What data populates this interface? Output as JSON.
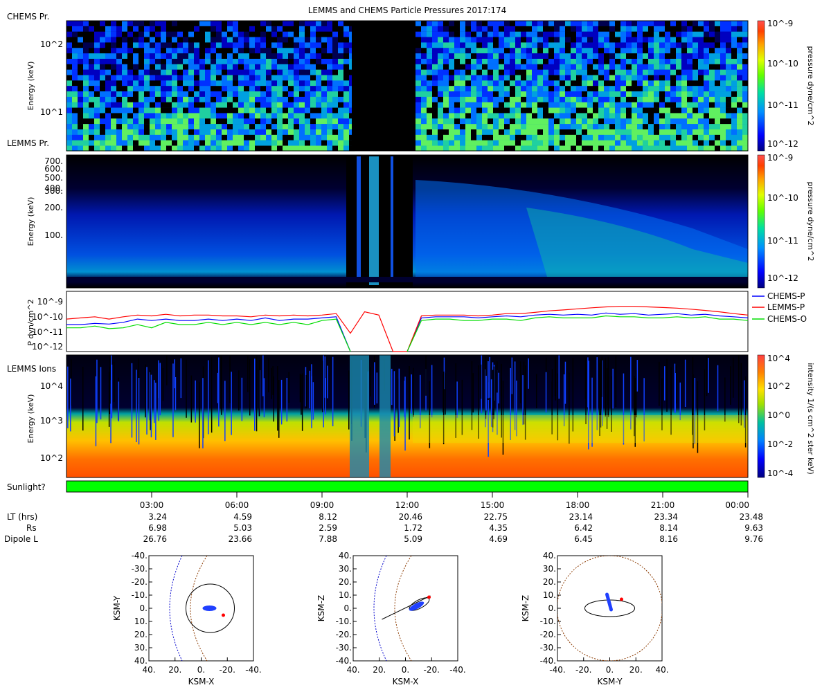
{
  "title": "LEMMS and CHEMS Particle Pressures  2017:174",
  "panels": [
    {
      "id": "chems_pressure",
      "label": "CHEMS Pr.",
      "ylabel": "Energy (keV)",
      "yticks": [
        "10^2",
        "10^1"
      ],
      "colorbar": {
        "label": "pressure dyne/cm^2",
        "ticks": [
          "10^-9",
          "10^-10",
          "10^-11",
          "10^-12"
        ]
      }
    },
    {
      "id": "lemms_pressure",
      "label": "LEMMS Pr.",
      "ylabel": "Energy (keV)",
      "yticks": [
        "700.",
        "600.",
        "500.",
        "400.",
        "300.",
        "200.",
        "100."
      ],
      "colorbar": {
        "label": "pressure dyne/cm^2",
        "ticks": [
          "10^-9",
          "10^-10",
          "10^-11",
          "10^-12"
        ]
      }
    },
    {
      "id": "pressure_lines",
      "label": "",
      "ylabel": "P dyn/cm^2",
      "yticks": [
        "10^-9",
        "10^-10",
        "10^-11",
        "10^-12"
      ],
      "legend": [
        {
          "name": "CHEMS-P",
          "color": "#0000ff"
        },
        {
          "name": "LEMMS-P",
          "color": "#ff0000"
        },
        {
          "name": "CHEMS-O",
          "color": "#00dd00"
        }
      ]
    },
    {
      "id": "lemms_ions",
      "label": "LEMMS Ions",
      "ylabel": "Energy (keV)",
      "yticks": [
        "10^4",
        "10^3",
        "10^2"
      ],
      "colorbar": {
        "label": "intensity 1/(s cm^2 ster keV)",
        "ticks": [
          "10^4",
          "10^2",
          "10^0",
          "10^-2",
          "10^-4"
        ]
      }
    },
    {
      "id": "sunlight",
      "label": "Sunlight?",
      "color": "#00ff00"
    }
  ],
  "chart_data": {
    "type": "line",
    "ylog": true,
    "ylim": [
      1e-12,
      2e-09
    ],
    "x_hours": [
      0,
      0.5,
      1,
      1.5,
      2,
      2.5,
      3,
      3.5,
      4,
      4.5,
      5,
      5.5,
      6,
      6.5,
      7,
      7.5,
      8,
      8.5,
      9,
      9.5,
      10,
      10.5,
      11,
      11.5,
      12,
      12.5,
      13,
      13.5,
      14,
      14.5,
      15,
      15.5,
      16,
      16.5,
      17,
      17.5,
      18,
      18.5,
      19,
      19.5,
      20,
      20.5,
      21,
      21.5,
      22,
      22.5,
      23,
      23.5,
      24
    ],
    "series": [
      {
        "name": "CHEMS-P",
        "color": "#0000ff",
        "values": [
          3e-11,
          3e-11,
          3.5e-11,
          3.2e-11,
          4e-11,
          6e-11,
          5e-11,
          6e-11,
          5e-11,
          5e-11,
          6e-11,
          5e-11,
          6e-11,
          5e-11,
          7e-11,
          5e-11,
          6e-11,
          6e-11,
          7e-11,
          8e-11,
          1e-12,
          null,
          1e-12,
          null,
          1e-12,
          7e-11,
          8e-11,
          8e-11,
          8e-11,
          7e-11,
          8e-11,
          9e-11,
          8e-11,
          1e-10,
          1.1e-10,
          1e-10,
          1.1e-10,
          1e-10,
          1.3e-10,
          1.1e-10,
          1.2e-10,
          1e-10,
          1.1e-10,
          1.2e-10,
          1e-10,
          1.1e-10,
          9e-11,
          8e-11,
          7e-11
        ]
      },
      {
        "name": "LEMMS-P",
        "color": "#ff0000",
        "values": [
          6e-11,
          7e-11,
          8e-11,
          6e-11,
          8e-11,
          1e-10,
          9e-11,
          1.1e-10,
          9e-11,
          1e-10,
          1e-10,
          9e-11,
          9e-11,
          8e-11,
          1e-10,
          9e-11,
          1e-10,
          9e-11,
          1e-10,
          1.2e-10,
          1e-11,
          1.5e-10,
          1e-10,
          1e-12,
          1e-12,
          9e-11,
          1e-10,
          1e-10,
          1e-10,
          9e-11,
          1e-10,
          1.2e-10,
          1.2e-10,
          1.4e-10,
          1.7e-10,
          1.9e-10,
          2.2e-10,
          2.5e-10,
          2.8e-10,
          3e-10,
          3e-10,
          2.8e-10,
          2.6e-10,
          2.4e-10,
          2.1e-10,
          1.8e-10,
          1.5e-10,
          1.2e-10,
          1e-10
        ]
      },
      {
        "name": "CHEMS-O",
        "color": "#00dd00",
        "values": [
          2e-11,
          2e-11,
          2.5e-11,
          1.8e-11,
          2e-11,
          3e-11,
          2e-11,
          4e-11,
          3e-11,
          3e-11,
          4e-11,
          3e-11,
          4e-11,
          3e-11,
          4e-11,
          3e-11,
          4e-11,
          3e-11,
          5e-11,
          6e-11,
          1e-12,
          null,
          1e-12,
          null,
          1e-12,
          5e-11,
          6e-11,
          6e-11,
          5e-11,
          5e-11,
          6e-11,
          6e-11,
          5e-11,
          7e-11,
          8e-11,
          7e-11,
          7e-11,
          7e-11,
          9e-11,
          8e-11,
          8e-11,
          7e-11,
          7e-11,
          8e-11,
          7e-11,
          8e-11,
          6e-11,
          6e-11,
          5e-11
        ]
      }
    ]
  },
  "xaxis": {
    "ticks": [
      "03:00",
      "06:00",
      "09:00",
      "12:00",
      "15:00",
      "18:00",
      "21:00",
      "00:00"
    ],
    "rows": [
      {
        "label": "LT (hrs)",
        "values": [
          "3.24",
          "4.59",
          "8.12",
          "20.46",
          "22.75",
          "23.14",
          "23.34",
          "23.48"
        ]
      },
      {
        "label": "Rs",
        "values": [
          "6.98",
          "5.03",
          "2.59",
          "1.72",
          "4.35",
          "6.42",
          "8.14",
          "9.63"
        ]
      },
      {
        "label": "Dipole L",
        "values": [
          "26.76",
          "23.66",
          "7.88",
          "5.09",
          "4.69",
          "6.45",
          "8.16",
          "9.76"
        ]
      }
    ]
  },
  "orbits": [
    {
      "xlabel": "KSM-X",
      "ylabel": "KSM-Y",
      "yticks": [
        "-40.",
        "-30.",
        "-20.",
        "-10.",
        "0.",
        "10.",
        "20.",
        "30.",
        "40."
      ],
      "xticks": [
        "40.",
        "20.",
        "0.",
        "-20.",
        "-40."
      ]
    },
    {
      "xlabel": "KSM-X",
      "ylabel": "KSM-Z",
      "yticks": [
        "40.",
        "30.",
        "20.",
        "10.",
        "0.",
        "-10.",
        "-20.",
        "-30.",
        "-40."
      ],
      "xticks": [
        "40.",
        "20.",
        "0.",
        "-20.",
        "-40."
      ]
    },
    {
      "xlabel": "KSM-Y",
      "ylabel": "KSM-Z",
      "yticks": [
        "40.",
        "30.",
        "20.",
        "10.",
        "0.",
        "-10.",
        "-20.",
        "-30.",
        "-40."
      ],
      "xticks": [
        "-40.",
        "-20.",
        "0.",
        "20.",
        "40."
      ]
    }
  ]
}
